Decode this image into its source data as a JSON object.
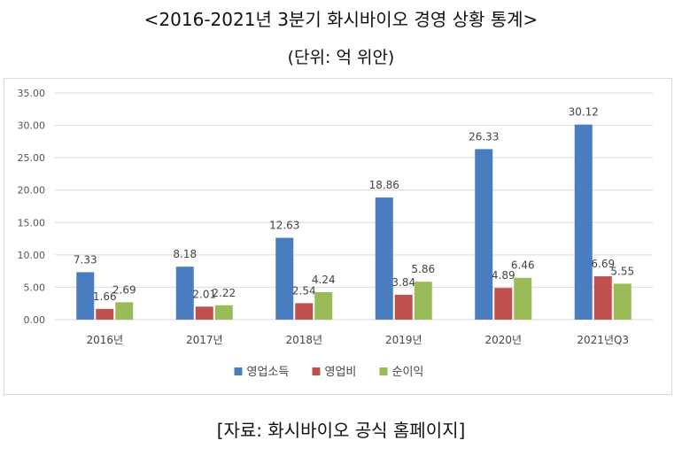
{
  "header": {
    "title": "<2016-2021년 3분기 화시바이오 경영 상황 통계>",
    "unit": "(단위: 억 위안)"
  },
  "footer": {
    "source": "[자료: 화시바이오 공식 홈페이지]"
  },
  "chart_data": {
    "type": "bar",
    "categories": [
      "2016년",
      "2017년",
      "2018년",
      "2019년",
      "2020년",
      "2021년Q3"
    ],
    "series": [
      {
        "name": "영업소득",
        "color": "#4a7cc0",
        "values": [
          7.33,
          8.18,
          12.63,
          18.86,
          26.33,
          30.12
        ]
      },
      {
        "name": "영업비",
        "color": "#c0504d",
        "values": [
          1.66,
          2.01,
          2.54,
          3.84,
          4.89,
          6.69
        ]
      },
      {
        "name": "순이익",
        "color": "#9bbb59",
        "values": [
          2.69,
          2.22,
          4.24,
          5.86,
          6.46,
          5.55
        ]
      }
    ],
    "yticks": [
      "0.00",
      "5.00",
      "10.00",
      "15.00",
      "20.00",
      "25.00",
      "30.00",
      "35.00"
    ],
    "ylim": [
      0,
      35
    ],
    "grid": true,
    "legend": "bottom-center"
  }
}
